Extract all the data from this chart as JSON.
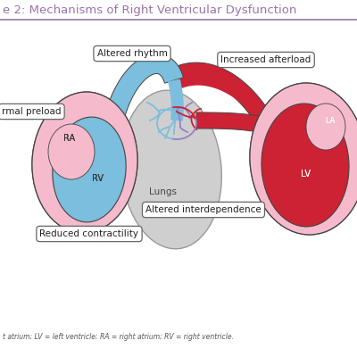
{
  "title": "e 2: Mechanisms of Right Ventricular Dysfunction",
  "title_color": "#9B72AA",
  "title_fontsize": 9.5,
  "bg_color": "#FFFFFF",
  "caption": "t atrium; LV = left ventricle; RA = right atrium; RV = right ventricle.",
  "labels": {
    "altered_rhythm": "Altered rhythm",
    "increased_afterload": "Increased afterload",
    "abnormal_preload": "rmal preload",
    "lungs": "Lungs",
    "altered_interdependence": "Altered interdependence",
    "reduced_contractility": "Reduced contractility",
    "RA": "RA",
    "RV": "RV",
    "LV": "LV",
    "LA": "LA"
  },
  "colors": {
    "right_heart_blue": "#7BBEDD",
    "right_heart_pink": "#F5BBCC",
    "left_heart_red": "#CC2233",
    "left_heart_pink": "#F5BBCC",
    "lungs_fill": "#D0CFCF",
    "lungs_stroke": "#AAAAAA",
    "vessel_blue": "#7BBEDD",
    "vessel_red": "#CC2233",
    "vessel_purple": "#9B7EC8",
    "outline": "#444444",
    "label_text": "#222222"
  }
}
